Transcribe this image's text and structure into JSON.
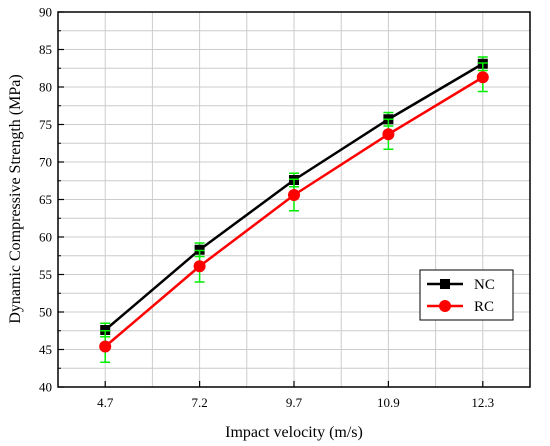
{
  "chart_data": {
    "type": "line",
    "title": "",
    "xlabel": "Impact velocity (m/s)",
    "ylabel": "Dynamic Compressive Strength (MPa)",
    "categories": [
      "4.7",
      "7.2",
      "9.7",
      "10.9",
      "12.3"
    ],
    "ylim": [
      40,
      90
    ],
    "yticks": [
      40,
      45,
      50,
      55,
      60,
      65,
      70,
      75,
      80,
      85,
      90
    ],
    "grid": true,
    "legend_position": "lower-right",
    "series": [
      {
        "name": "NC",
        "color": "#000000",
        "marker": "square",
        "values": [
          47.6,
          58.3,
          67.6,
          75.7,
          83.1
        ],
        "error": [
          0.9,
          0.9,
          0.9,
          0.9,
          0.9
        ]
      },
      {
        "name": "RC",
        "color": "#ff0000",
        "marker": "circle",
        "values": [
          45.4,
          56.1,
          65.6,
          73.7,
          81.3
        ],
        "error": [
          2.1,
          2.1,
          2.1,
          2.0,
          1.9
        ]
      }
    ],
    "errorbar_color": "#00ee00"
  }
}
